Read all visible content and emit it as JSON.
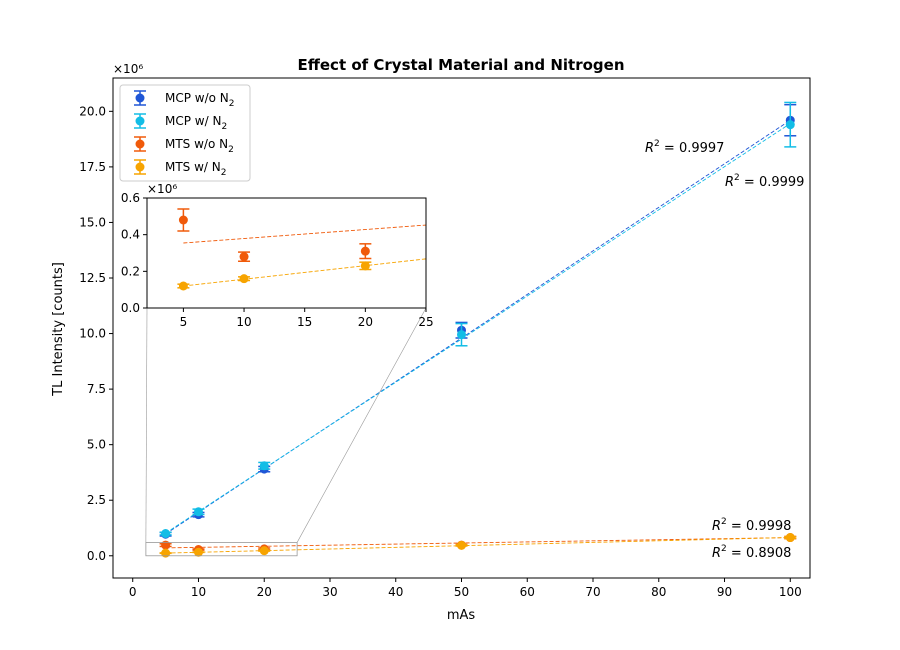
{
  "chart_data": {
    "type": "scatter",
    "title": "Effect of Crystal Material and Nitrogen",
    "xlabel": "mAs",
    "ylabel": "TL Intensity [counts]",
    "y_multiplier_label": "×10⁶",
    "xlim": [
      -3,
      103
    ],
    "ylim": [
      -1.0,
      21.5
    ],
    "x_ticks": [
      0,
      10,
      20,
      30,
      40,
      50,
      60,
      70,
      80,
      90,
      100
    ],
    "y_ticks": [
      0.0,
      2.5,
      5.0,
      7.5,
      10.0,
      12.5,
      15.0,
      17.5,
      20.0
    ],
    "x_tick_labels": [
      "0",
      "10",
      "20",
      "30",
      "40",
      "50",
      "60",
      "70",
      "80",
      "90",
      "100"
    ],
    "y_tick_labels": [
      "0.0",
      "2.5",
      "5.0",
      "7.5",
      "10.0",
      "12.5",
      "15.0",
      "17.5",
      "20.0"
    ],
    "legend_position": "top-left",
    "series": [
      {
        "name": "MCP w/o N",
        "sub": "2",
        "color": "#1f56d6",
        "x": [
          5,
          10,
          20,
          50,
          100
        ],
        "y": [
          0.97,
          1.85,
          3.9,
          10.15,
          19.6
        ],
        "err": [
          0.08,
          0.1,
          0.12,
          0.35,
          0.7
        ],
        "fit": [
          0.0,
          0.196
        ],
        "r2_label": "0.9997"
      },
      {
        "name": "MCP w/ N",
        "sub": "2",
        "color": "#12bde6",
        "x": [
          5,
          10,
          20,
          50,
          100
        ],
        "y": [
          1.0,
          1.98,
          4.05,
          9.95,
          19.4
        ],
        "err": [
          0.06,
          0.12,
          0.15,
          0.5,
          1.0
        ],
        "fit": [
          0.05,
          0.194
        ],
        "r2_label": "0.9999"
      },
      {
        "name": "MTS w/o N",
        "sub": "2",
        "color": "#f05a0a",
        "x": [
          5,
          10,
          20,
          50,
          100
        ],
        "y": [
          0.48,
          0.28,
          0.31,
          0.48,
          0.82
        ],
        "err": [
          0.06,
          0.025,
          0.04,
          0.03,
          0.05
        ],
        "fit": [
          0.33,
          0.0049
        ],
        "r2_label": "0.8908"
      },
      {
        "name": "MTS w/ N",
        "sub": "2",
        "color": "#f7a400",
        "x": [
          5,
          10,
          20,
          50,
          100
        ],
        "y": [
          0.12,
          0.16,
          0.23,
          0.47,
          0.82
        ],
        "err": [
          0.01,
          0.01,
          0.02,
          0.03,
          0.04
        ],
        "fit": [
          0.083,
          0.0074
        ],
        "r2_label": "0.9998"
      }
    ],
    "inset": {
      "xlim": [
        2,
        25
      ],
      "ylim": [
        0.0,
        0.6
      ],
      "x_ticks": [
        5,
        10,
        15,
        20,
        25
      ],
      "x_tick_labels": [
        "5",
        "10",
        "15",
        "20",
        "25"
      ],
      "y_ticks": [
        0.0,
        0.2,
        0.4,
        0.6
      ],
      "y_tick_labels": [
        "0.0",
        "0.2",
        "0.4",
        "0.6"
      ],
      "y_multiplier_label": "×10⁶",
      "series_shown": [
        "MTS w/o N",
        "MTS w/ N"
      ]
    }
  }
}
